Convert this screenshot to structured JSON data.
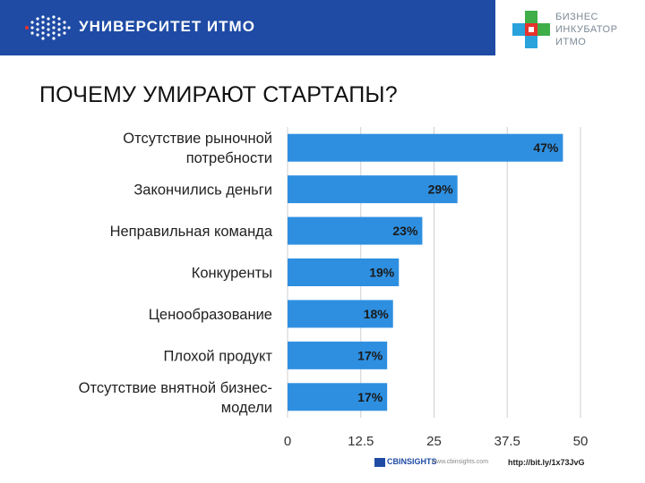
{
  "header": {
    "university_name": "УНИВЕРСИТЕТ ИТМО",
    "incubator_lines": [
      "БИЗНЕС",
      "ИНКУБАТОР",
      "ИТМО"
    ]
  },
  "title": "ПОЧЕМУ УМИРАЮТ СТАРТАПЫ?",
  "chart_data": {
    "type": "bar",
    "orientation": "horizontal",
    "categories": [
      [
        "Отсутствие рыночной",
        "потребности"
      ],
      [
        "Закончились деньги"
      ],
      [
        "Неправильная команда"
      ],
      [
        "Конкуренты"
      ],
      [
        "Ценообразование"
      ],
      [
        "Плохой продукт"
      ],
      [
        "Отсутствие внятной бизнес-",
        "модели"
      ]
    ],
    "values": [
      47,
      29,
      23,
      19,
      18,
      17,
      17
    ],
    "value_labels": [
      "47%",
      "29%",
      "23%",
      "19%",
      "18%",
      "17%",
      "17%"
    ],
    "xlim": [
      0,
      50
    ],
    "xticks": [
      0,
      12.5,
      25,
      37.5,
      50
    ],
    "xtick_labels": [
      "0",
      "12.5",
      "25",
      "37.5",
      "50"
    ],
    "grid": true,
    "bar_color": "#2e8fe0"
  },
  "footer": {
    "logo_text": "CBINSIGHTS",
    "site": "www.cbinsights.com",
    "link": "http://bit.ly/1x73JvG"
  }
}
